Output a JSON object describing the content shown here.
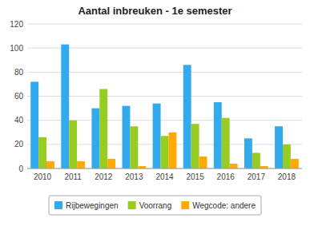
{
  "chart_data": {
    "type": "bar",
    "title": "Aantal inbreuken - 1e semester",
    "categories": [
      2010,
      2011,
      2012,
      2013,
      2014,
      2015,
      2016,
      2017,
      2018
    ],
    "series": [
      {
        "name": "Rijbewegingen",
        "color": "#33aaee",
        "values": [
          72,
          103,
          50,
          52,
          54,
          86,
          55,
          25,
          35
        ]
      },
      {
        "name": "Voorrang",
        "color": "#99cc22",
        "values": [
          26,
          40,
          66,
          35,
          27,
          37,
          42,
          13,
          20
        ]
      },
      {
        "name": "Wegcode: andere",
        "color": "#ffaa00",
        "values": [
          6,
          6,
          8,
          2,
          30,
          10,
          4,
          2,
          8
        ]
      }
    ],
    "ylim": [
      0,
      120
    ],
    "yticks": [
      0,
      20,
      40,
      60,
      80,
      100,
      120
    ],
    "grid": true,
    "legend": "bottom"
  }
}
